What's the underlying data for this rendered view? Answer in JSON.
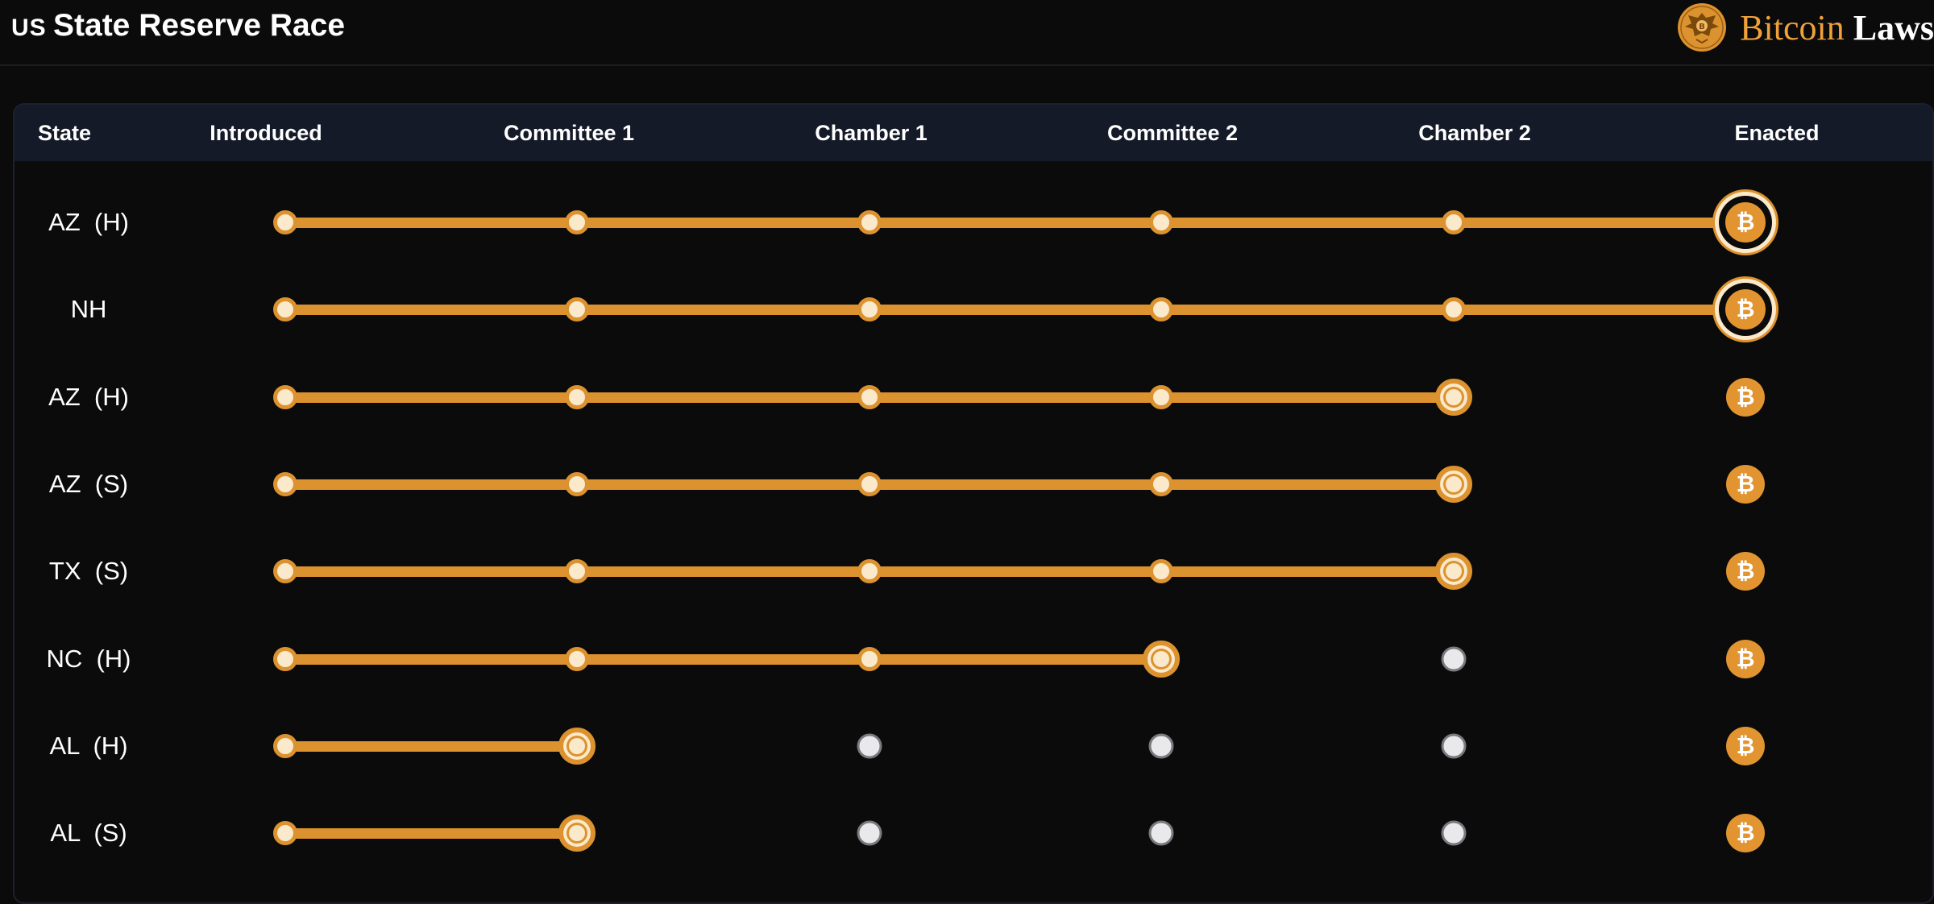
{
  "header": {
    "flag": "US",
    "title": "State Reserve Race",
    "brand": {
      "word1": "Bitcoin",
      "word2": "Laws"
    }
  },
  "columns": [
    "State",
    "Introduced",
    "Committee 1",
    "Chamber 1",
    "Committee 2",
    "Chamber 2",
    "Enacted"
  ],
  "stage_count": 6,
  "icons": {
    "enacted": "bitcoin-icon",
    "seal": "eagle-seal-icon"
  },
  "colors": {
    "accent": "#dc922e",
    "completed_node": "#fbe9cb",
    "pending_node": "#e9e9ec",
    "header_bg": "#141a28",
    "page_bg": "#0b0b0b"
  },
  "rows": [
    {
      "state": "AZ  (H)",
      "stage_reached": 6
    },
    {
      "state": "NH",
      "stage_reached": 6
    },
    {
      "state": "AZ  (H)",
      "stage_reached": 5
    },
    {
      "state": "AZ  (S)",
      "stage_reached": 5
    },
    {
      "state": "TX  (S)",
      "stage_reached": 5
    },
    {
      "state": "NC  (H)",
      "stage_reached": 4
    },
    {
      "state": "AL  (H)",
      "stage_reached": 2
    },
    {
      "state": "AL  (S)",
      "stage_reached": 2
    }
  ]
}
